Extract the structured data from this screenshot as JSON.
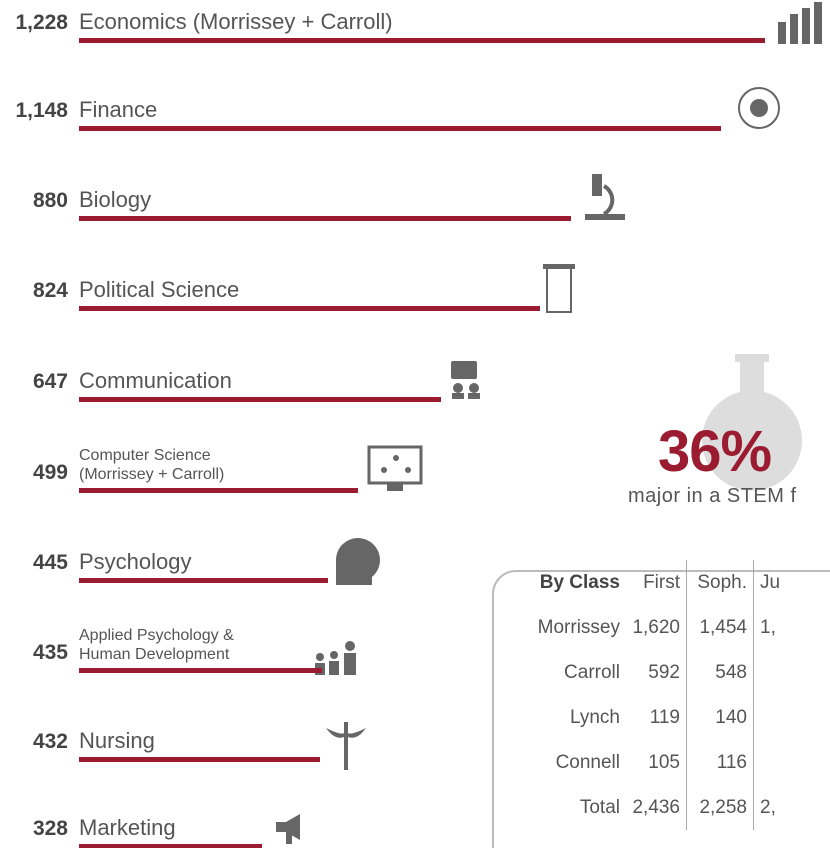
{
  "chart_data": {
    "type": "bar",
    "orientation": "horizontal",
    "color": "#9b1b30",
    "categories": [
      "Economics (Morrissey + Carroll)",
      "Finance",
      "Biology",
      "Political Science",
      "Communication",
      "Computer Science (Morrissey + Carroll)",
      "Psychology",
      "Applied Psychology & Human Development",
      "Nursing",
      "Marketing"
    ],
    "values": [
      1228,
      1148,
      880,
      824,
      647,
      499,
      445,
      435,
      432,
      328
    ],
    "value_labels": [
      "1,228",
      "1,148",
      "880",
      "824",
      "647",
      "499",
      "445",
      "435",
      "432",
      "328"
    ]
  },
  "stem": {
    "percent": "36%",
    "caption": "major in a STEM f"
  },
  "table": {
    "header": [
      "By Class",
      "First",
      "Soph.",
      "Ju"
    ],
    "rows": [
      [
        "Morrissey",
        "1,620",
        "1,454",
        "1,"
      ],
      [
        "Carroll",
        "592",
        "548",
        ""
      ],
      [
        "Lynch",
        "119",
        "140",
        ""
      ],
      [
        "Connell",
        "105",
        "116",
        ""
      ],
      [
        "Total",
        "2,436",
        "2,258",
        "2,"
      ]
    ]
  }
}
